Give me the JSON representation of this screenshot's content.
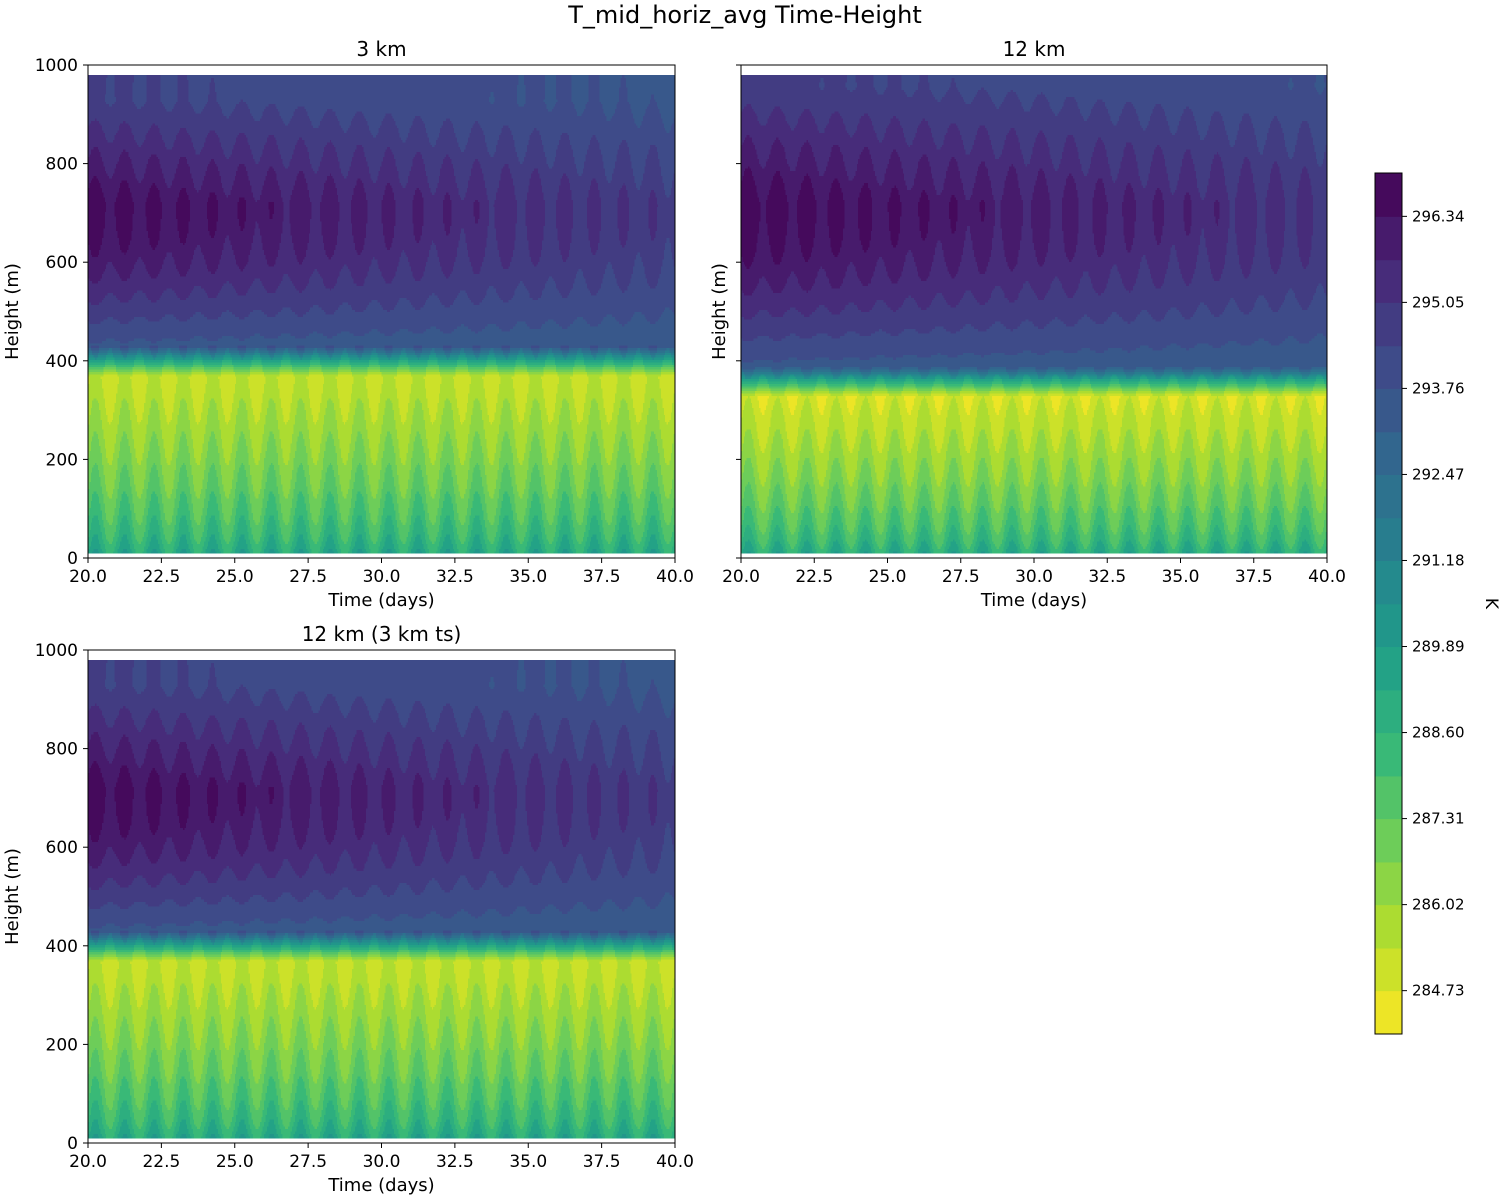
{
  "figure": {
    "suptitle": "T_mid_horiz_avg Time-Height",
    "cmap": "viridis_r"
  },
  "colorbar": {
    "label": "K",
    "vmin": 284.08,
    "vmax": 296.99,
    "levels": [
      284.08,
      284.73,
      285.37,
      286.02,
      286.66,
      287.31,
      287.95,
      288.6,
      289.24,
      289.89,
      290.53,
      291.18,
      291.82,
      292.47,
      293.11,
      293.76,
      294.4,
      295.05,
      295.69,
      296.34,
      296.99
    ],
    "tick_values": [
      284.73,
      286.02,
      287.31,
      288.6,
      289.89,
      291.18,
      292.47,
      293.76,
      295.05,
      296.34
    ],
    "tick_labels": [
      "284.73",
      "286.02",
      "287.31",
      "288.60",
      "289.89",
      "291.18",
      "292.47",
      "293.76",
      "295.05",
      "296.34"
    ]
  },
  "chart_data": [
    {
      "type": "heatmap",
      "title": "3 km",
      "xlabel": "Time (days)",
      "ylabel": "Height (m)",
      "xlim": [
        20.0,
        40.0
      ],
      "ylim": [
        0,
        1000
      ],
      "data_height_range": [
        10,
        980
      ],
      "xticks": [
        "20.0",
        "22.5",
        "25.0",
        "27.5",
        "30.0",
        "32.5",
        "35.0",
        "37.5",
        "40.0"
      ],
      "yticks": [
        "0",
        "200",
        "400",
        "600",
        "800",
        "1000"
      ],
      "field": {
        "inversion_height_m": 385,
        "inversion_thickness_m": 30,
        "coldest_near_inversion_K": 285.2,
        "surface_K": 290.0,
        "upper_max_K": 296.6,
        "top_K": 294.5,
        "upper_trend_K_per_day": -0.09,
        "diurnal_amplitude_K": 0.9,
        "period_days": 1.0
      },
      "show_y_ticklabels": true,
      "show_ylabel": true
    },
    {
      "type": "heatmap",
      "title": "12 km",
      "xlabel": "Time (days)",
      "ylabel": "Height (m)",
      "xlim": [
        20.0,
        40.0
      ],
      "ylim": [
        0,
        1000
      ],
      "data_height_range": [
        10,
        980
      ],
      "xticks": [
        "20.0",
        "22.5",
        "25.0",
        "27.5",
        "30.0",
        "32.5",
        "35.0",
        "37.5",
        "40.0"
      ],
      "yticks": [
        "0",
        "200",
        "400",
        "600",
        "800",
        "1000"
      ],
      "field": {
        "inversion_height_m": 345,
        "inversion_thickness_m": 30,
        "coldest_near_inversion_K": 284.9,
        "surface_K": 289.9,
        "upper_max_K": 296.7,
        "top_K": 294.6,
        "upper_trend_K_per_day": -0.08,
        "diurnal_amplitude_K": 0.9,
        "period_days": 1.0
      },
      "show_y_ticklabels": false,
      "show_ylabel": true
    },
    {
      "type": "heatmap",
      "title": "12 km (3 km ts)",
      "xlabel": "Time (days)",
      "ylabel": "Height (m)",
      "xlim": [
        20.0,
        40.0
      ],
      "ylim": [
        0,
        1000
      ],
      "data_height_range": [
        10,
        980
      ],
      "xticks": [
        "20.0",
        "22.5",
        "25.0",
        "27.5",
        "30.0",
        "32.5",
        "35.0",
        "37.5",
        "40.0"
      ],
      "yticks": [
        "0",
        "200",
        "400",
        "600",
        "800",
        "1000"
      ],
      "field": {
        "inversion_height_m": 385,
        "inversion_thickness_m": 30,
        "coldest_near_inversion_K": 285.2,
        "surface_K": 290.0,
        "upper_max_K": 296.6,
        "top_K": 294.5,
        "upper_trend_K_per_day": -0.09,
        "diurnal_amplitude_K": 0.9,
        "period_days": 1.0
      },
      "show_y_ticklabels": true,
      "show_ylabel": true
    }
  ]
}
